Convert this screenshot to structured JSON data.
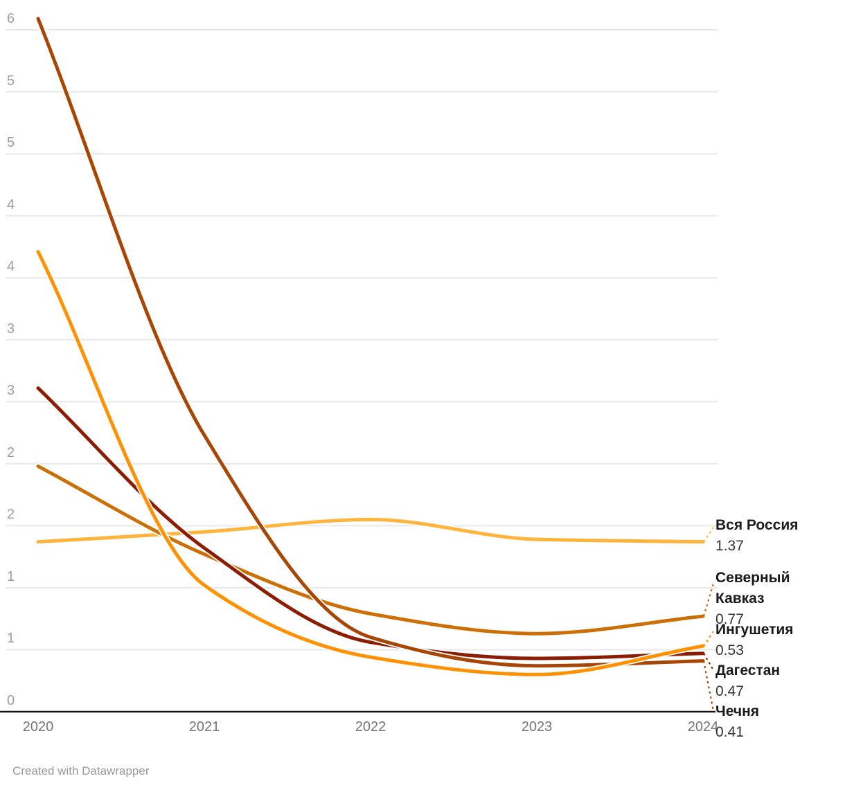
{
  "chart_data": {
    "type": "line",
    "x": [
      2020,
      2021,
      2022,
      2023,
      2024
    ],
    "x_labels": [
      "2020",
      "2021",
      "2022",
      "2023",
      "2024"
    ],
    "y_axis": {
      "min": 0,
      "max": 5.5,
      "step": 0.5,
      "tick_labels_top_to_bottom": [
        "6",
        "5",
        "5",
        "4",
        "4",
        "3",
        "3",
        "2",
        "2",
        "1",
        "1",
        "0"
      ]
    },
    "grid": true,
    "legend_position": "right-edge-direct-labels",
    "series": [
      {
        "name": "Вся Россия",
        "name_lines": [
          "Вся Россия"
        ],
        "color": "#FFB43E",
        "values": [
          1.37,
          1.45,
          1.55,
          1.39,
          1.37
        ],
        "end_value_label": "1.37"
      },
      {
        "name": "Северный Кавказ",
        "name_lines": [
          "Северный",
          "Кавказ"
        ],
        "color": "#CC7005",
        "values": [
          1.98,
          1.27,
          0.79,
          0.63,
          0.77
        ],
        "end_value_label": "0.77"
      },
      {
        "name": "Ингушетия",
        "name_lines": [
          "Ингушетия"
        ],
        "color": "#FF9104",
        "values": [
          3.71,
          1.02,
          0.44,
          0.3,
          0.53
        ],
        "end_value_label": "0.53"
      },
      {
        "name": "Дагестан",
        "name_lines": [
          "Дагестан"
        ],
        "color": "#8C1D03",
        "values": [
          2.61,
          1.32,
          0.56,
          0.43,
          0.47
        ],
        "end_value_label": "0.47"
      },
      {
        "name": "Чечня",
        "name_lines": [
          "Чечня"
        ],
        "color": "#A84705",
        "values": [
          5.59,
          2.23,
          0.6,
          0.37,
          0.41
        ],
        "end_value_label": "0.41"
      }
    ],
    "colors": {
      "gridline": "#E8E8E8",
      "axis": "#141414",
      "y_tick_text": "#9e9e9e",
      "x_tick_text": "#757575"
    }
  },
  "footer": {
    "credit": "Created with Datawrapper"
  }
}
